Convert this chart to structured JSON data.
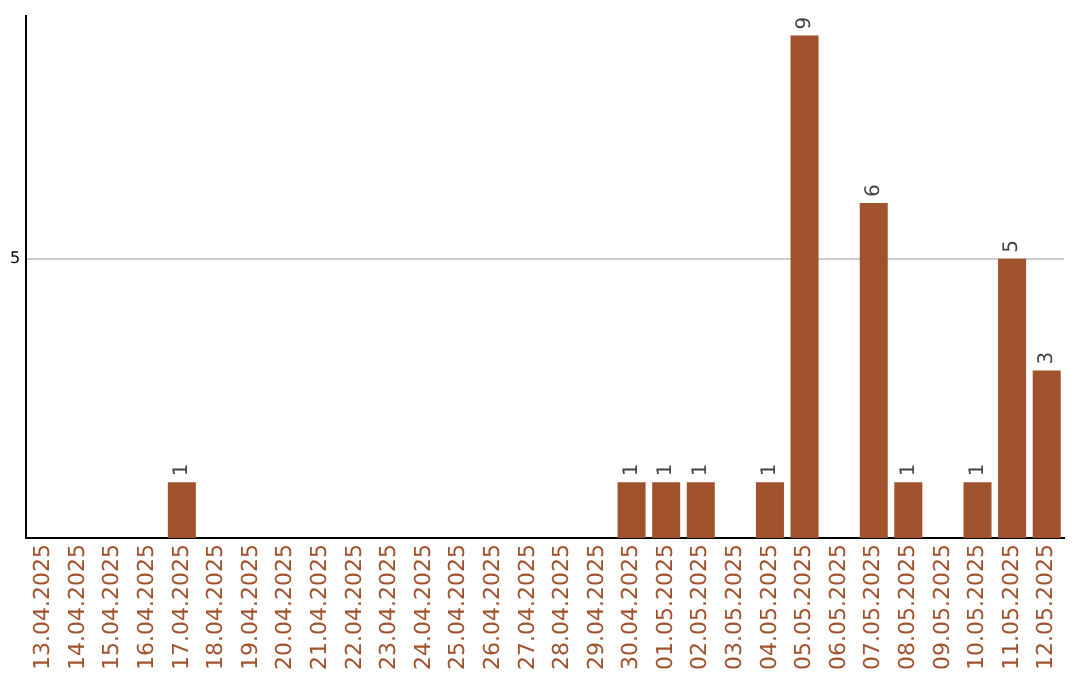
{
  "chart_data": {
    "type": "bar",
    "categories": [
      "13.04.2025",
      "14.04.2025",
      "15.04.2025",
      "16.04.2025",
      "17.04.2025",
      "18.04.2025",
      "19.04.2025",
      "20.04.2025",
      "21.04.2025",
      "22.04.2025",
      "23.04.2025",
      "24.04.2025",
      "25.04.2025",
      "26.04.2025",
      "27.04.2025",
      "28.04.2025",
      "29.04.2025",
      "30.04.2025",
      "01.05.2025",
      "02.05.2025",
      "03.05.2025",
      "04.05.2025",
      "05.05.2025",
      "06.05.2025",
      "07.05.2025",
      "08.05.2025",
      "09.05.2025",
      "10.05.2025",
      "11.05.2025",
      "12.05.2025"
    ],
    "values": [
      0,
      0,
      0,
      0,
      1,
      0,
      0,
      0,
      0,
      0,
      0,
      0,
      0,
      0,
      0,
      0,
      0,
      1,
      1,
      1,
      0,
      1,
      9,
      0,
      6,
      1,
      0,
      1,
      5,
      3
    ],
    "value_labels": [
      null,
      null,
      null,
      null,
      "1",
      null,
      null,
      null,
      null,
      null,
      null,
      null,
      null,
      null,
      null,
      null,
      null,
      "1",
      "1",
      "1",
      null,
      "1",
      "9",
      null,
      "6",
      "1",
      null,
      "1",
      "5",
      "3"
    ],
    "color": "#a0522d",
    "ylim": [
      0,
      9.35
    ],
    "yticks": [
      5
    ],
    "grid": "y",
    "legend": false
  }
}
